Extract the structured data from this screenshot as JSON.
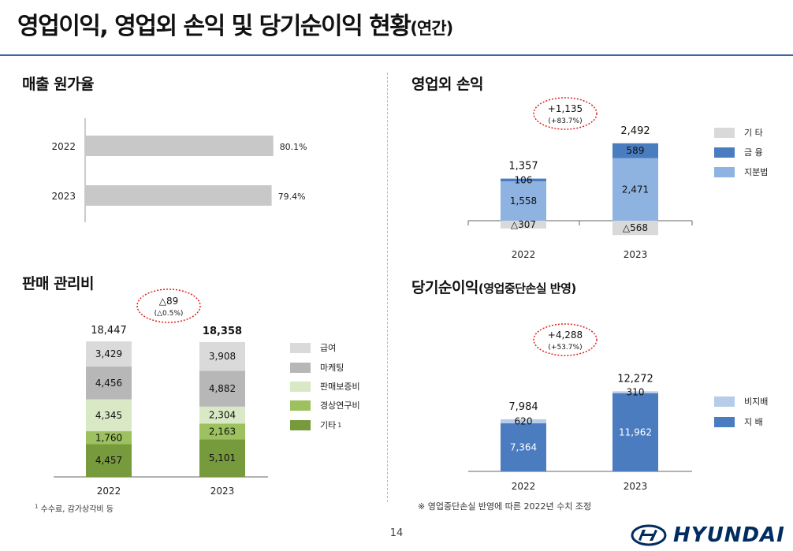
{
  "page": {
    "title_main": "영업이익, 영업외 손익 및 당기순이익 현황",
    "title_suffix": "(연간)",
    "page_number": "14",
    "logo_text": "HYUNDAI"
  },
  "sections": {
    "cost_ratio_title": "매출 원가율",
    "sga_title": "판매 관리비",
    "nonop_title": "영업외 손익",
    "netincome_title": "당기순이익",
    "netincome_title_suffix": "(영업중단손실 반영)"
  },
  "footnotes": {
    "sga": "수수료, 감가상각비 등",
    "sga_marker": "1",
    "netincome": "※ 영업중단손실 반영에 따른 2022년 수치 조정"
  },
  "colors": {
    "title_rule": "#3d63a8",
    "gray_bar": "#c8c8c8",
    "sga_급여": "#dadada",
    "sga_마케팅": "#b7b7b7",
    "sga_판매보증비": "#d9e8c5",
    "sga_경상연구비": "#9cc15e",
    "sga_기타": "#779a3c",
    "nonop_기타": "#d9d9d9",
    "nonop_금융": "#4a7cc0",
    "nonop_지분법": "#8eb3e1",
    "ni_비지배": "#b6cce8",
    "ni_지배": "#4b7cbf",
    "highlight_ellipse": "#e02020"
  },
  "chart_data": [
    {
      "id": "cost_ratio",
      "type": "bar",
      "orientation": "horizontal",
      "categories": [
        "2022",
        "2023"
      ],
      "values": [
        80.1,
        79.4
      ],
      "value_labels": [
        "80.1%",
        "79.4%"
      ],
      "xlim": [
        0,
        100
      ]
    },
    {
      "id": "sga",
      "type": "bar",
      "stacked": true,
      "categories": [
        "2022",
        "2023"
      ],
      "totals": [
        18447,
        18358
      ],
      "total_labels": [
        "18,447",
        "18,358"
      ],
      "series": [
        {
          "name": "기타",
          "footnote_marker": "1",
          "values": [
            4457,
            5101
          ],
          "labels": [
            "4,457",
            "5,101"
          ]
        },
        {
          "name": "경상연구비",
          "values": [
            1760,
            2163
          ],
          "labels": [
            "1,760",
            "2,163"
          ]
        },
        {
          "name": "판매보증비",
          "values": [
            4345,
            2304
          ],
          "labels": [
            "4,345",
            "2,304"
          ]
        },
        {
          "name": "마케팅",
          "values": [
            4456,
            4882
          ],
          "labels": [
            "4,456",
            "4,882"
          ]
        },
        {
          "name": "급여",
          "values": [
            3429,
            3908
          ],
          "labels": [
            "3,429",
            "3,908"
          ]
        }
      ],
      "change_annotation": {
        "line1": "△89",
        "line2": "(△0.5%)"
      }
    },
    {
      "id": "nonop",
      "type": "bar",
      "stacked": true,
      "categories": [
        "2022",
        "2023"
      ],
      "totals": [
        1357,
        2492
      ],
      "total_labels": [
        "1,357",
        "2,492"
      ],
      "series": [
        {
          "name": "지분법",
          "values": [
            1558,
            2471
          ],
          "labels": [
            "1,558",
            "2,471"
          ]
        },
        {
          "name": "금 융",
          "values": [
            106,
            589
          ],
          "labels": [
            "106",
            "589"
          ]
        },
        {
          "name": "기 타",
          "values": [
            -307,
            -568
          ],
          "labels": [
            "△307",
            "△568"
          ]
        }
      ],
      "change_annotation": {
        "line1": "+1,135",
        "line2": "(+83.7%)"
      }
    },
    {
      "id": "net_income",
      "type": "bar",
      "stacked": true,
      "categories": [
        "2022",
        "2023"
      ],
      "totals": [
        7984,
        12272
      ],
      "total_labels": [
        "7,984",
        "12,272"
      ],
      "series": [
        {
          "name": "지 배",
          "values": [
            7364,
            11962
          ],
          "labels": [
            "7,364",
            "11,962"
          ]
        },
        {
          "name": "비지배",
          "values": [
            620,
            310
          ],
          "labels": [
            "620",
            "310"
          ]
        }
      ],
      "change_annotation": {
        "line1": "+4,288",
        "line2": "(+53.7%)"
      }
    }
  ]
}
